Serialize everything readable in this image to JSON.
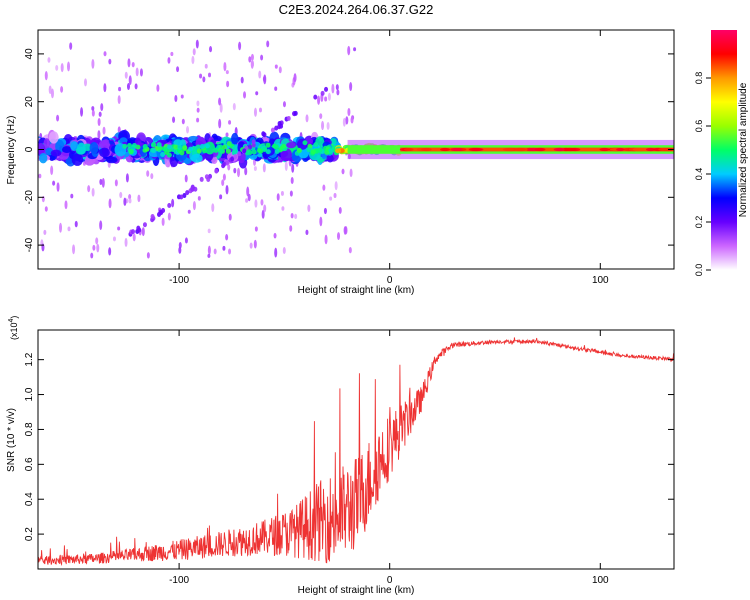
{
  "title": "C2E3.2024.264.06.37.G22",
  "chart_data": [
    {
      "type": "heatmap",
      "xlabel": "Height of straight line (km)",
      "ylabel": "Frequency (Hz)",
      "xlim": [
        -167,
        135
      ],
      "ylim": [
        -50,
        50
      ],
      "xticks": [
        -100,
        0,
        100
      ],
      "yticks": [
        -40,
        -20,
        0,
        20,
        40
      ],
      "colorbar": {
        "label": "Normalized spectral amplitude",
        "range": [
          0.0,
          1.0
        ],
        "ticks": [
          0.0,
          0.2,
          0.4,
          0.6,
          0.8
        ],
        "colors": [
          "#ffffff",
          "#cc66ff",
          "#6600ff",
          "#0000ff",
          "#00ccff",
          "#00ff66",
          "#99ff00",
          "#ffff00",
          "#ff9900",
          "#ff0000",
          "#ff0066"
        ]
      },
      "features": {
        "noisy_band_x": [
          -167,
          -25
        ],
        "noisy_band_freq_halfwidth": 6,
        "transition_x": [
          -25,
          5
        ],
        "stable_line_x": [
          5,
          135
        ],
        "stable_line_freq": 0,
        "stable_line_amplitude": 0.85,
        "diagonal_streak": {
          "x": [
            -125,
            -30
          ],
          "freq": [
            -37,
            25
          ]
        }
      }
    },
    {
      "type": "line",
      "xlabel": "Height of straight line (km)",
      "ylabel": "SNR (10 * v/v)",
      "y_multiplier_label": "(x10",
      "y_multiplier_exp": "4",
      "xlim": [
        -167,
        135
      ],
      "ylim": [
        0.0,
        1.37
      ],
      "xticks": [
        -100,
        0,
        100
      ],
      "yticks": [
        0.2,
        0.4,
        0.6,
        0.8,
        1.0,
        1.2
      ],
      "line_color": "#ee3333",
      "envelope": {
        "x": [
          -167,
          -140,
          -120,
          -100,
          -80,
          -60,
          -45,
          -35,
          -25,
          -15,
          -5,
          5,
          15,
          22,
          30,
          50,
          70,
          90,
          110,
          135
        ],
        "base": [
          0.04,
          0.05,
          0.07,
          0.09,
          0.12,
          0.15,
          0.17,
          0.2,
          0.22,
          0.3,
          0.55,
          0.75,
          0.95,
          1.2,
          1.28,
          1.3,
          1.3,
          1.26,
          1.22,
          1.2
        ],
        "amp": [
          0.05,
          0.06,
          0.08,
          0.12,
          0.15,
          0.2,
          0.3,
          0.45,
          0.55,
          0.55,
          0.45,
          0.3,
          0.15,
          0.06,
          0.03,
          0.02,
          0.02,
          0.02,
          0.02,
          0.02
        ]
      }
    }
  ]
}
